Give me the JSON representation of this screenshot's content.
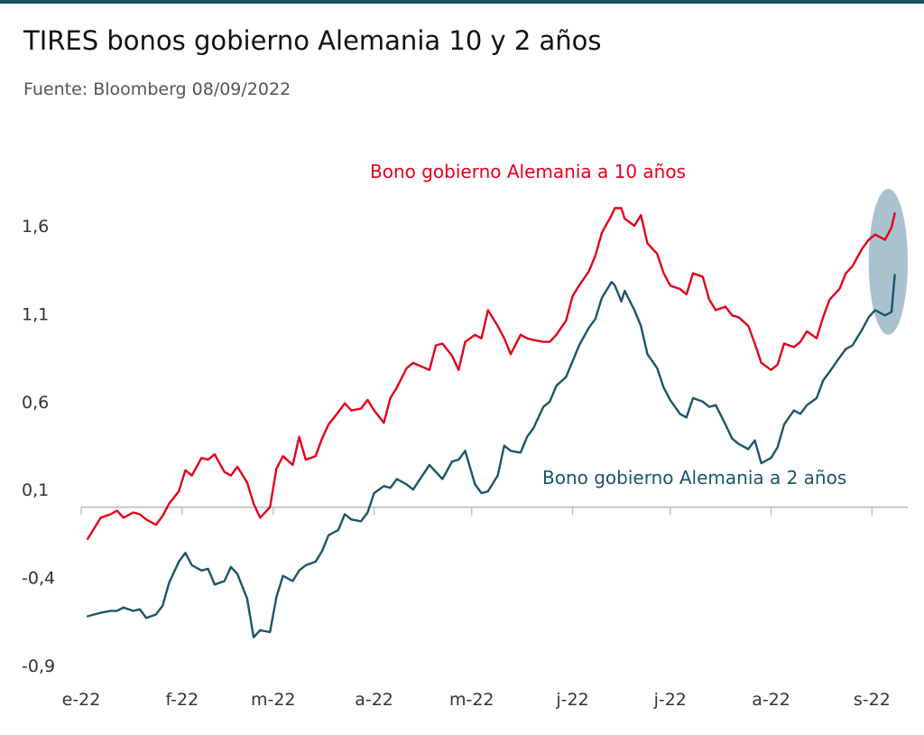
{
  "header": {
    "title": "TIRES bonos gobierno Alemania 10 y 2 años",
    "subtitle": "Fuente: Bloomberg 08/09/2022"
  },
  "chart_data": {
    "type": "line",
    "title": "TIRES bonos gobierno Alemania 10 y 2 años",
    "subtitle": "Fuente: Bloomberg 08/09/2022",
    "xlabel": "",
    "ylabel": "",
    "ylim": [
      -0.9,
      1.8
    ],
    "y_ticks": [
      -0.9,
      -0.4,
      0.1,
      0.6,
      1.1,
      1.6
    ],
    "y_tick_labels": [
      "-0,9",
      "-0,4",
      "0,1",
      "0,6",
      "1,1",
      "1,6"
    ],
    "x_tick_labels": [
      "e-22",
      "f-22",
      "m-22",
      "a-22",
      "m-22",
      "j-22",
      "j-22",
      "a-22",
      "s-22"
    ],
    "x_tick_dates": [
      "2022-01-01",
      "2022-02-01",
      "2022-03-01",
      "2022-04-01",
      "2022-05-01",
      "2022-06-01",
      "2022-07-01",
      "2022-08-01",
      "2022-09-01"
    ],
    "x_range": [
      "2022-01-01",
      "2022-09-12"
    ],
    "baseline": 0.0,
    "grid": false,
    "highlight": {
      "type": "ellipse",
      "x_from": "2022-08-31",
      "x_to": "2022-09-12",
      "y_from": 0.98,
      "y_to": 1.81,
      "color": "#a9c2ce"
    },
    "series": [
      {
        "name": "Bono gobierno Alemania a 10 años",
        "color": "#e3001b",
        "x": [
          "2022-01-03",
          "2022-01-05",
          "2022-01-07",
          "2022-01-10",
          "2022-01-12",
          "2022-01-14",
          "2022-01-17",
          "2022-01-19",
          "2022-01-21",
          "2022-01-24",
          "2022-01-26",
          "2022-01-28",
          "2022-01-31",
          "2022-02-02",
          "2022-02-04",
          "2022-02-07",
          "2022-02-09",
          "2022-02-11",
          "2022-02-14",
          "2022-02-16",
          "2022-02-18",
          "2022-02-21",
          "2022-02-23",
          "2022-02-25",
          "2022-02-28",
          "2022-03-02",
          "2022-03-04",
          "2022-03-07",
          "2022-03-09",
          "2022-03-11",
          "2022-03-14",
          "2022-03-16",
          "2022-03-18",
          "2022-03-21",
          "2022-03-23",
          "2022-03-25",
          "2022-03-28",
          "2022-03-30",
          "2022-04-01",
          "2022-04-04",
          "2022-04-06",
          "2022-04-08",
          "2022-04-11",
          "2022-04-13",
          "2022-04-18",
          "2022-04-20",
          "2022-04-22",
          "2022-04-25",
          "2022-04-27",
          "2022-04-29",
          "2022-05-02",
          "2022-05-04",
          "2022-05-06",
          "2022-05-09",
          "2022-05-11",
          "2022-05-13",
          "2022-05-16",
          "2022-05-18",
          "2022-05-20",
          "2022-05-23",
          "2022-05-25",
          "2022-05-27",
          "2022-05-30",
          "2022-06-01",
          "2022-06-03",
          "2022-06-06",
          "2022-06-08",
          "2022-06-10",
          "2022-06-13",
          "2022-06-14",
          "2022-06-16",
          "2022-06-17",
          "2022-06-20",
          "2022-06-22",
          "2022-06-24",
          "2022-06-27",
          "2022-06-29",
          "2022-07-01",
          "2022-07-04",
          "2022-07-06",
          "2022-07-08",
          "2022-07-11",
          "2022-07-13",
          "2022-07-15",
          "2022-07-18",
          "2022-07-20",
          "2022-07-22",
          "2022-07-25",
          "2022-07-27",
          "2022-07-29",
          "2022-08-01",
          "2022-08-03",
          "2022-08-05",
          "2022-08-08",
          "2022-08-10",
          "2022-08-12",
          "2022-08-15",
          "2022-08-17",
          "2022-08-19",
          "2022-08-22",
          "2022-08-24",
          "2022-08-26",
          "2022-08-29",
          "2022-08-31",
          "2022-09-02",
          "2022-09-05",
          "2022-09-07",
          "2022-09-08"
        ],
        "values": [
          -0.18,
          -0.12,
          -0.06,
          -0.04,
          -0.02,
          -0.06,
          -0.03,
          -0.04,
          -0.07,
          -0.1,
          -0.05,
          0.02,
          0.09,
          0.21,
          0.18,
          0.28,
          0.27,
          0.3,
          0.2,
          0.18,
          0.23,
          0.14,
          0.02,
          -0.06,
          0.0,
          0.22,
          0.29,
          0.24,
          0.4,
          0.27,
          0.29,
          0.39,
          0.47,
          0.54,
          0.59,
          0.55,
          0.56,
          0.61,
          0.55,
          0.48,
          0.62,
          0.68,
          0.79,
          0.82,
          0.78,
          0.92,
          0.93,
          0.86,
          0.78,
          0.94,
          0.98,
          0.96,
          1.12,
          1.03,
          0.96,
          0.87,
          0.98,
          0.96,
          0.95,
          0.94,
          0.94,
          0.98,
          1.06,
          1.2,
          1.26,
          1.34,
          1.43,
          1.56,
          1.66,
          1.7,
          1.7,
          1.64,
          1.6,
          1.66,
          1.5,
          1.44,
          1.33,
          1.26,
          1.24,
          1.21,
          1.33,
          1.31,
          1.18,
          1.12,
          1.14,
          1.09,
          1.08,
          1.03,
          0.93,
          0.82,
          0.78,
          0.81,
          0.93,
          0.91,
          0.94,
          1.0,
          0.96,
          1.08,
          1.18,
          1.24,
          1.33,
          1.37,
          1.47,
          1.52,
          1.55,
          1.52,
          1.59,
          1.67
        ]
      },
      {
        "name": "Bono gobierno Alemania a 2 años",
        "color": "#1b5569",
        "x": [
          "2022-01-03",
          "2022-01-05",
          "2022-01-07",
          "2022-01-10",
          "2022-01-12",
          "2022-01-14",
          "2022-01-17",
          "2022-01-19",
          "2022-01-21",
          "2022-01-24",
          "2022-01-26",
          "2022-01-28",
          "2022-01-31",
          "2022-02-02",
          "2022-02-04",
          "2022-02-07",
          "2022-02-09",
          "2022-02-11",
          "2022-02-14",
          "2022-02-16",
          "2022-02-18",
          "2022-02-21",
          "2022-02-23",
          "2022-02-25",
          "2022-02-28",
          "2022-03-02",
          "2022-03-04",
          "2022-03-07",
          "2022-03-09",
          "2022-03-11",
          "2022-03-14",
          "2022-03-16",
          "2022-03-18",
          "2022-03-21",
          "2022-03-23",
          "2022-03-25",
          "2022-03-28",
          "2022-03-30",
          "2022-04-01",
          "2022-04-04",
          "2022-04-06",
          "2022-04-08",
          "2022-04-11",
          "2022-04-13",
          "2022-04-18",
          "2022-04-20",
          "2022-04-22",
          "2022-04-25",
          "2022-04-27",
          "2022-04-29",
          "2022-05-02",
          "2022-05-04",
          "2022-05-06",
          "2022-05-09",
          "2022-05-11",
          "2022-05-13",
          "2022-05-16",
          "2022-05-18",
          "2022-05-20",
          "2022-05-23",
          "2022-05-25",
          "2022-05-27",
          "2022-05-30",
          "2022-06-01",
          "2022-06-03",
          "2022-06-06",
          "2022-06-08",
          "2022-06-10",
          "2022-06-13",
          "2022-06-14",
          "2022-06-16",
          "2022-06-17",
          "2022-06-20",
          "2022-06-22",
          "2022-06-24",
          "2022-06-27",
          "2022-06-29",
          "2022-07-01",
          "2022-07-04",
          "2022-07-06",
          "2022-07-08",
          "2022-07-11",
          "2022-07-13",
          "2022-07-15",
          "2022-07-18",
          "2022-07-20",
          "2022-07-22",
          "2022-07-25",
          "2022-07-27",
          "2022-07-29",
          "2022-08-01",
          "2022-08-03",
          "2022-08-05",
          "2022-08-08",
          "2022-08-10",
          "2022-08-12",
          "2022-08-15",
          "2022-08-17",
          "2022-08-19",
          "2022-08-22",
          "2022-08-24",
          "2022-08-26",
          "2022-08-29",
          "2022-08-31",
          "2022-09-02",
          "2022-09-05",
          "2022-09-07",
          "2022-09-08"
        ],
        "values": [
          -0.62,
          -0.61,
          -0.6,
          -0.59,
          -0.59,
          -0.57,
          -0.59,
          -0.58,
          -0.63,
          -0.61,
          -0.56,
          -0.43,
          -0.31,
          -0.26,
          -0.33,
          -0.36,
          -0.35,
          -0.44,
          -0.42,
          -0.34,
          -0.38,
          -0.52,
          -0.74,
          -0.7,
          -0.71,
          -0.51,
          -0.39,
          -0.42,
          -0.36,
          -0.33,
          -0.31,
          -0.25,
          -0.16,
          -0.13,
          -0.04,
          -0.07,
          -0.08,
          -0.03,
          0.08,
          0.12,
          0.11,
          0.16,
          0.13,
          0.1,
          0.24,
          0.2,
          0.16,
          0.26,
          0.27,
          0.32,
          0.13,
          0.08,
          0.09,
          0.18,
          0.35,
          0.32,
          0.31,
          0.4,
          0.45,
          0.57,
          0.6,
          0.69,
          0.74,
          0.83,
          0.92,
          1.02,
          1.07,
          1.19,
          1.28,
          1.26,
          1.17,
          1.23,
          1.12,
          1.03,
          0.87,
          0.79,
          0.68,
          0.61,
          0.53,
          0.51,
          0.62,
          0.6,
          0.57,
          0.58,
          0.47,
          0.39,
          0.36,
          0.33,
          0.38,
          0.25,
          0.28,
          0.34,
          0.47,
          0.55,
          0.53,
          0.58,
          0.62,
          0.72,
          0.77,
          0.85,
          0.9,
          0.92,
          1.01,
          1.08,
          1.12,
          1.09,
          1.11,
          1.32
        ]
      }
    ]
  }
}
